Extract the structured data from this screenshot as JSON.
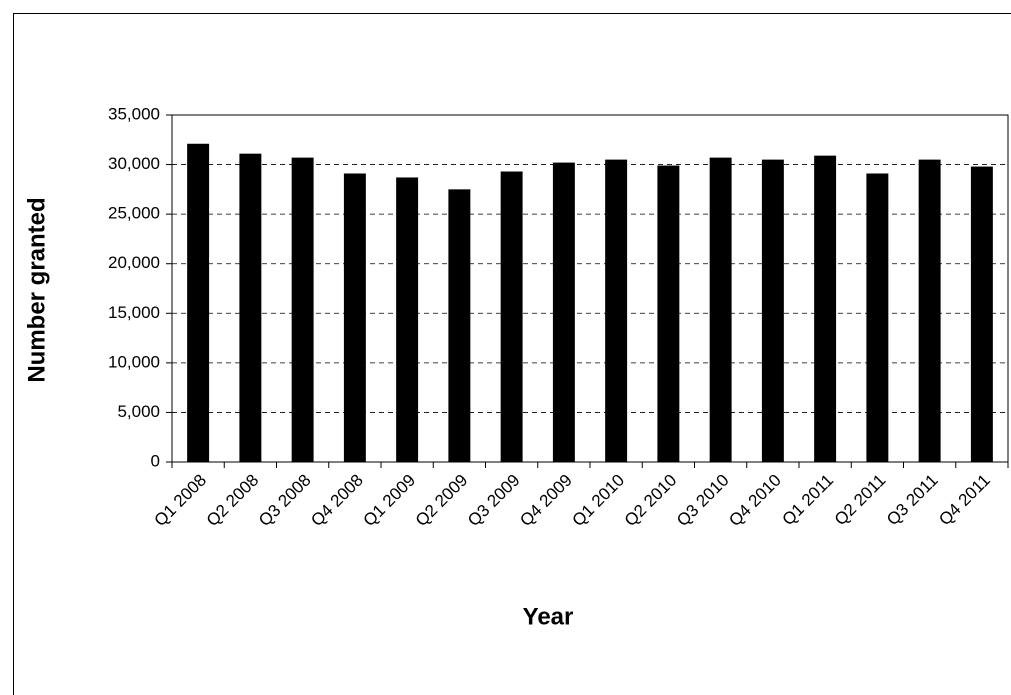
{
  "chart_data": {
    "type": "bar",
    "x_label": "Year",
    "y_label": "Number granted",
    "categories": [
      "Q1 2008",
      "Q2 2008",
      "Q3 2008",
      "Q4 2008",
      "Q1 2009",
      "Q2 2009",
      "Q3 2009",
      "Q4 2009",
      "Q1 2010",
      "Q2 2010",
      "Q3 2010",
      "Q4 2010",
      "Q1 2011",
      "Q2 2011",
      "Q3 2011",
      "Q4 2011"
    ],
    "values": [
      32100,
      31100,
      30700,
      29100,
      28700,
      27500,
      29300,
      30200,
      30500,
      29900,
      30700,
      30500,
      30900,
      29100,
      30500,
      29800
    ],
    "color": "#000000",
    "ylim": [
      0,
      35000
    ],
    "yticks": [
      0,
      {
        "value": 5000,
        "label": "5,000"
      },
      {
        "value": 10000,
        "label": "10,000"
      },
      {
        "value": 15000,
        "label": "15,000"
      },
      {
        "value": 20000,
        "label": "20,000"
      },
      {
        "value": 25000,
        "label": "25,000"
      },
      {
        "value": 30000,
        "label": "30,000"
      },
      {
        "value": 35000,
        "label": "35,000"
      }
    ],
    "grid": true
  }
}
